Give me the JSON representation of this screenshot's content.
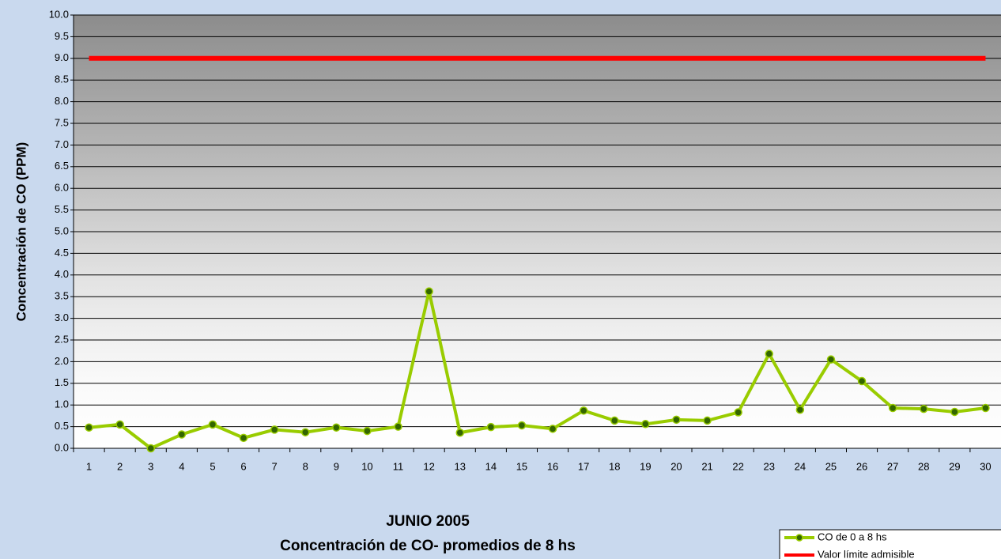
{
  "chart_data": {
    "type": "line",
    "title": "Concentración de CO- promedios de 8 hs",
    "x_label": "JUNIO 2005",
    "y_label": "Concentración de CO (PPM)",
    "categories": [
      "1",
      "2",
      "3",
      "4",
      "5",
      "6",
      "7",
      "8",
      "9",
      "10",
      "11",
      "12",
      "13",
      "14",
      "15",
      "16",
      "17",
      "18",
      "19",
      "20",
      "21",
      "22",
      "23",
      "24",
      "25",
      "26",
      "27",
      "28",
      "29",
      "30"
    ],
    "series": [
      {
        "name": "CO de 0 a 8 hs",
        "color": "#99cc00",
        "marker_color": "#336600",
        "values": [
          0.48,
          0.55,
          0.0,
          0.32,
          0.55,
          0.24,
          0.43,
          0.37,
          0.48,
          0.4,
          0.5,
          3.62,
          0.36,
          0.49,
          0.53,
          0.45,
          0.87,
          0.64,
          0.56,
          0.66,
          0.64,
          0.83,
          2.18,
          0.89,
          2.05,
          1.55,
          0.93,
          0.91,
          0.84,
          0.93
        ]
      },
      {
        "name": "Valor límite admisible",
        "color": "#ff0000",
        "values": [
          9,
          9,
          9,
          9,
          9,
          9,
          9,
          9,
          9,
          9,
          9,
          9,
          9,
          9,
          9,
          9,
          9,
          9,
          9,
          9,
          9,
          9,
          9,
          9,
          9,
          9,
          9,
          9,
          9,
          9
        ]
      }
    ],
    "ylim": [
      0,
      10
    ],
    "yticks": [
      {
        "value": 0,
        "label": "0.0"
      },
      0.5,
      {
        "value": 1,
        "label": "1.0"
      },
      1.5,
      {
        "value": 2,
        "label": "2.0"
      },
      2.5,
      {
        "value": 3,
        "label": "3.0"
      },
      3.5,
      {
        "value": 4,
        "label": "4.0"
      },
      4.5,
      {
        "value": 5,
        "label": "5.0"
      },
      5.5,
      {
        "value": 6,
        "label": "6.0"
      },
      6.5,
      {
        "value": 7,
        "label": "7.0"
      },
      7.5,
      {
        "value": 8,
        "label": "8.0"
      },
      8.5,
      {
        "value": 9,
        "label": "9.0"
      },
      9.5,
      {
        "value": 10,
        "label": "10.0"
      }
    ],
    "grid": true,
    "legend": "bottom-right"
  }
}
